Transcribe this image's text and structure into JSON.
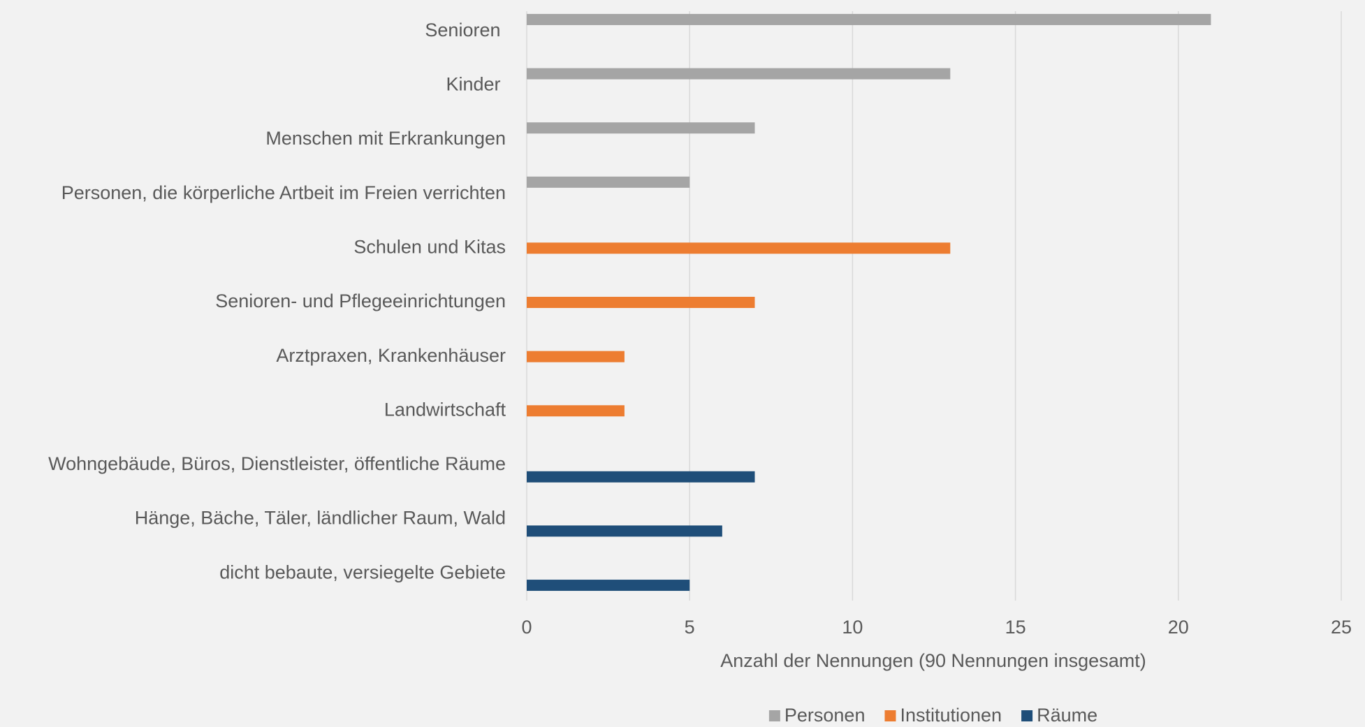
{
  "chart_data": {
    "type": "bar",
    "orientation": "horizontal",
    "categories": [
      "Senioren ",
      "Kinder ",
      "Menschen mit Erkrankungen",
      "Personen, die körperliche Artbeit im Freien verrichten",
      "Schulen und Kitas",
      "Senioren- und Pflegeeinrichtungen",
      "Arztpraxen, Krankenhäuser",
      "Landwirtschaft",
      "Wohngebäude, Büros, Dienstleister, öffentliche Räume",
      "Hänge, Bäche, Täler, ländlicher Raum, Wald",
      "dicht bebaute, versiegelte Gebiete"
    ],
    "series": [
      {
        "name": "Personen",
        "color": "#a5a5a5",
        "values": [
          21,
          13,
          7,
          5,
          null,
          null,
          null,
          null,
          null,
          null,
          null
        ]
      },
      {
        "name": "Institutionen",
        "color": "#ed7d31",
        "values": [
          null,
          null,
          null,
          null,
          13,
          7,
          3,
          3,
          null,
          null,
          null
        ]
      },
      {
        "name": "Räume",
        "color": "#1f4e79",
        "values": [
          null,
          null,
          null,
          null,
          null,
          null,
          null,
          null,
          7,
          6,
          5
        ]
      }
    ],
    "x_label": "Anzahl der Nennungen (90 Nennungen insgesamt)",
    "xlim": [
      0,
      25
    ],
    "xticks": [
      0,
      5,
      10,
      15,
      20,
      25
    ],
    "grid": true,
    "legend": "bottom"
  }
}
